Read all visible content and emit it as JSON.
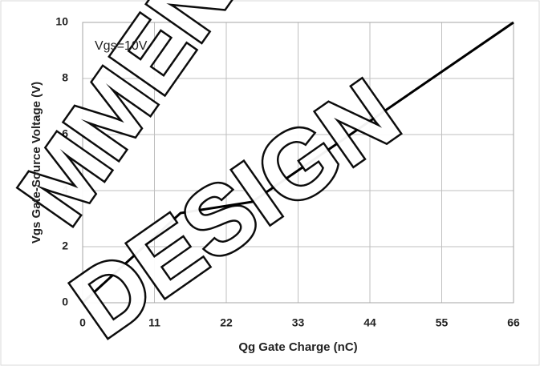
{
  "chart_data": {
    "type": "line",
    "x_label": "Qg Gate Charge (nC)",
    "y_label": "Vgs Gate-Source Voltage (V)",
    "annotation": "Vgs=10V",
    "watermark": [
      "MMEND",
      "DESIGN"
    ],
    "x": [
      0,
      15,
      26,
      66
    ],
    "series": [
      {
        "color": "#000000",
        "values": [
          0,
          3.2,
          3.6,
          10
        ]
      }
    ],
    "xlim": [
      0,
      66
    ],
    "xticks": [
      0,
      11,
      22,
      33,
      44,
      55,
      66
    ],
    "ylim": [
      0,
      10
    ],
    "yticks": [
      0,
      2,
      4,
      6,
      8,
      10
    ],
    "grid": true
  }
}
